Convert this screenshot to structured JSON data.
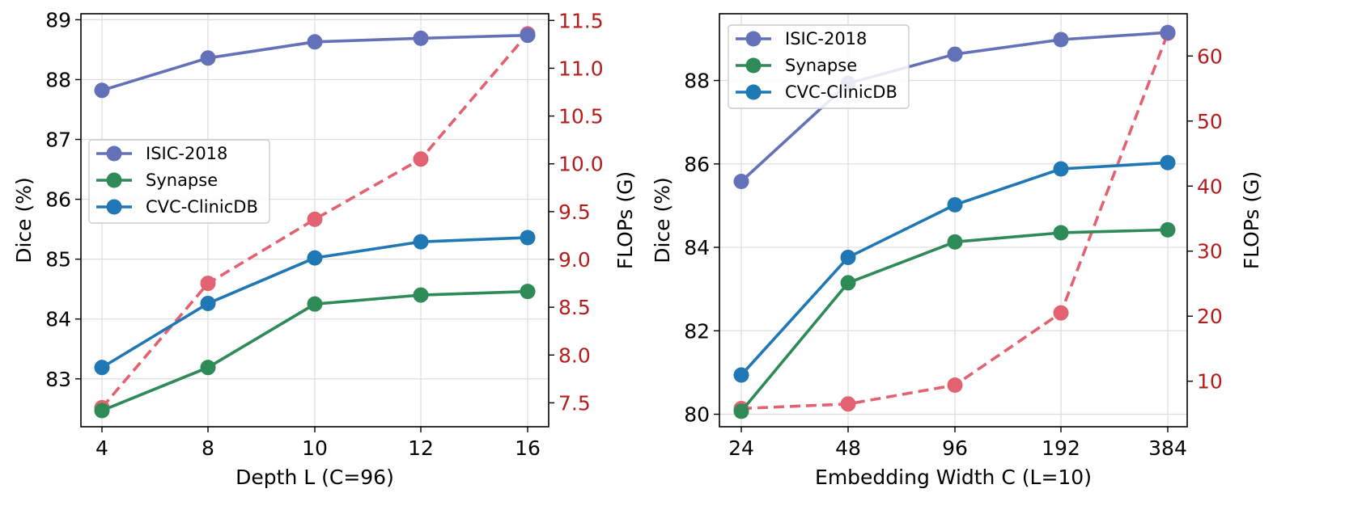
{
  "colors": {
    "isic": "#6371b8",
    "synapse": "#2e8a57",
    "cvc": "#1f77b4",
    "flops": "#e36271",
    "flops_axis": "#b51d1d"
  },
  "chart_data": [
    {
      "type": "line",
      "xlabel": "Depth L (C=96)",
      "ylabel": "Dice (%)",
      "y2label": "FLOPs (G)",
      "categories": [
        "4",
        "8",
        "10",
        "12",
        "16"
      ],
      "ylim": [
        82.2,
        89.1
      ],
      "y2lim": [
        7.25,
        11.57
      ],
      "yticks": [
        "83",
        "84",
        "85",
        "86",
        "87",
        "88",
        "89"
      ],
      "y2ticks": [
        "7.5",
        "8.0",
        "8.5",
        "9.0",
        "9.5",
        "10.0",
        "10.5",
        "11.0",
        "11.5"
      ],
      "legend_position": "center-left",
      "series": [
        {
          "name": "ISIC-2018",
          "axis": "left",
          "values": [
            87.82,
            88.36,
            88.63,
            88.69,
            88.74
          ]
        },
        {
          "name": "Synapse",
          "axis": "left",
          "values": [
            82.47,
            83.19,
            84.25,
            84.4,
            84.46
          ]
        },
        {
          "name": "CVC-ClinicDB",
          "axis": "left",
          "values": [
            83.19,
            84.26,
            85.02,
            85.29,
            85.36
          ]
        },
        {
          "name": "FLOPs",
          "axis": "right",
          "dashed": true,
          "values": [
            7.45,
            8.75,
            9.42,
            10.05,
            11.36
          ]
        }
      ]
    },
    {
      "type": "line",
      "xlabel": "Embedding Width C (L=10)",
      "ylabel": "Dice (%)",
      "y2label": "FLOPs (G)",
      "categories": [
        "24",
        "48",
        "96",
        "192",
        "384"
      ],
      "ylim": [
        79.7,
        89.6
      ],
      "y2lim": [
        3.0,
        66.5
      ],
      "yticks": [
        "80",
        "82",
        "84",
        "86",
        "88"
      ],
      "y2ticks": [
        "10",
        "20",
        "30",
        "40",
        "50",
        "60"
      ],
      "legend_position": "upper-left",
      "series": [
        {
          "name": "ISIC-2018",
          "axis": "left",
          "values": [
            85.58,
            87.93,
            88.63,
            88.98,
            89.15
          ]
        },
        {
          "name": "Synapse",
          "axis": "left",
          "values": [
            80.07,
            83.15,
            84.13,
            84.35,
            84.42
          ]
        },
        {
          "name": "CVC-ClinicDB",
          "axis": "left",
          "values": [
            80.94,
            83.76,
            85.02,
            85.88,
            86.03
          ]
        },
        {
          "name": "FLOPs",
          "axis": "right",
          "dashed": true,
          "values": [
            5.8,
            6.5,
            9.4,
            20.5,
            63.5
          ]
        }
      ]
    }
  ]
}
